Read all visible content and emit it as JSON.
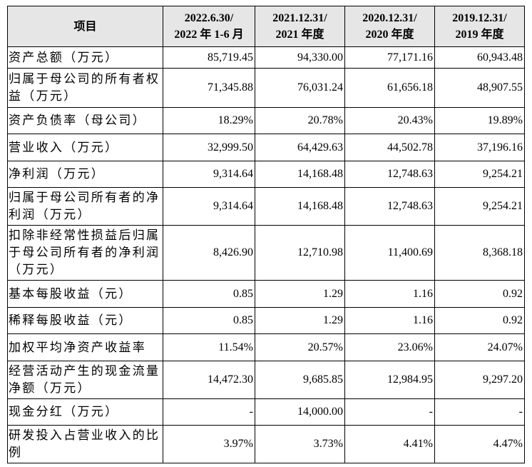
{
  "table": {
    "header": [
      [
        "项目"
      ],
      [
        "2022.6.30/",
        "2022 年 1-6 月"
      ],
      [
        "2021.12.31/",
        "2021 年度"
      ],
      [
        "2020.12.31/",
        "2020 年度"
      ],
      [
        "2019.12.31/",
        "2019 年度"
      ]
    ],
    "rows": [
      [
        "资产总额（万元）",
        "85,719.45",
        "94,330.00",
        "77,171.16",
        "60,943.48"
      ],
      [
        "归属于母公司的所有者权益（万元）",
        "71,345.88",
        "76,031.24",
        "61,656.18",
        "48,907.55"
      ],
      [
        "资产负债率（母公司）",
        "18.29%",
        "20.78%",
        "20.43%",
        "19.89%"
      ],
      [
        "营业收入（万元）",
        "32,999.50",
        "64,429.63",
        "44,502.78",
        "37,196.16"
      ],
      [
        "净利润（万元）",
        "9,314.64",
        "14,168.48",
        "12,748.63",
        "9,254.21"
      ],
      [
        "归属于母公司所有者的净利润（万元）",
        "9,314.64",
        "14,168.48",
        "12,748.63",
        "9,254.21"
      ],
      [
        "扣除非经常性损益后归属于母公司所有者的净利润（万元）",
        "8,426.90",
        "12,710.98",
        "11,400.69",
        "8,368.18"
      ],
      [
        "基本每股收益（元）",
        "0.85",
        "1.29",
        "1.16",
        "0.92"
      ],
      [
        "稀释每股收益（元）",
        "0.85",
        "1.29",
        "1.16",
        "0.92"
      ],
      [
        "加权平均净资产收益率",
        "11.54%",
        "20.57%",
        "23.06%",
        "24.07%"
      ],
      [
        "经营活动产生的现金流量净额（万元）",
        "14,472.30",
        "9,685.85",
        "12,984.95",
        "9,297.20"
      ],
      [
        "现金分红（万元）",
        "-",
        "14,000.00",
        "-",
        "-"
      ],
      [
        "研发投入占营业收入的比例",
        "3.97%",
        "3.73%",
        "4.41%",
        "4.47%"
      ]
    ]
  }
}
